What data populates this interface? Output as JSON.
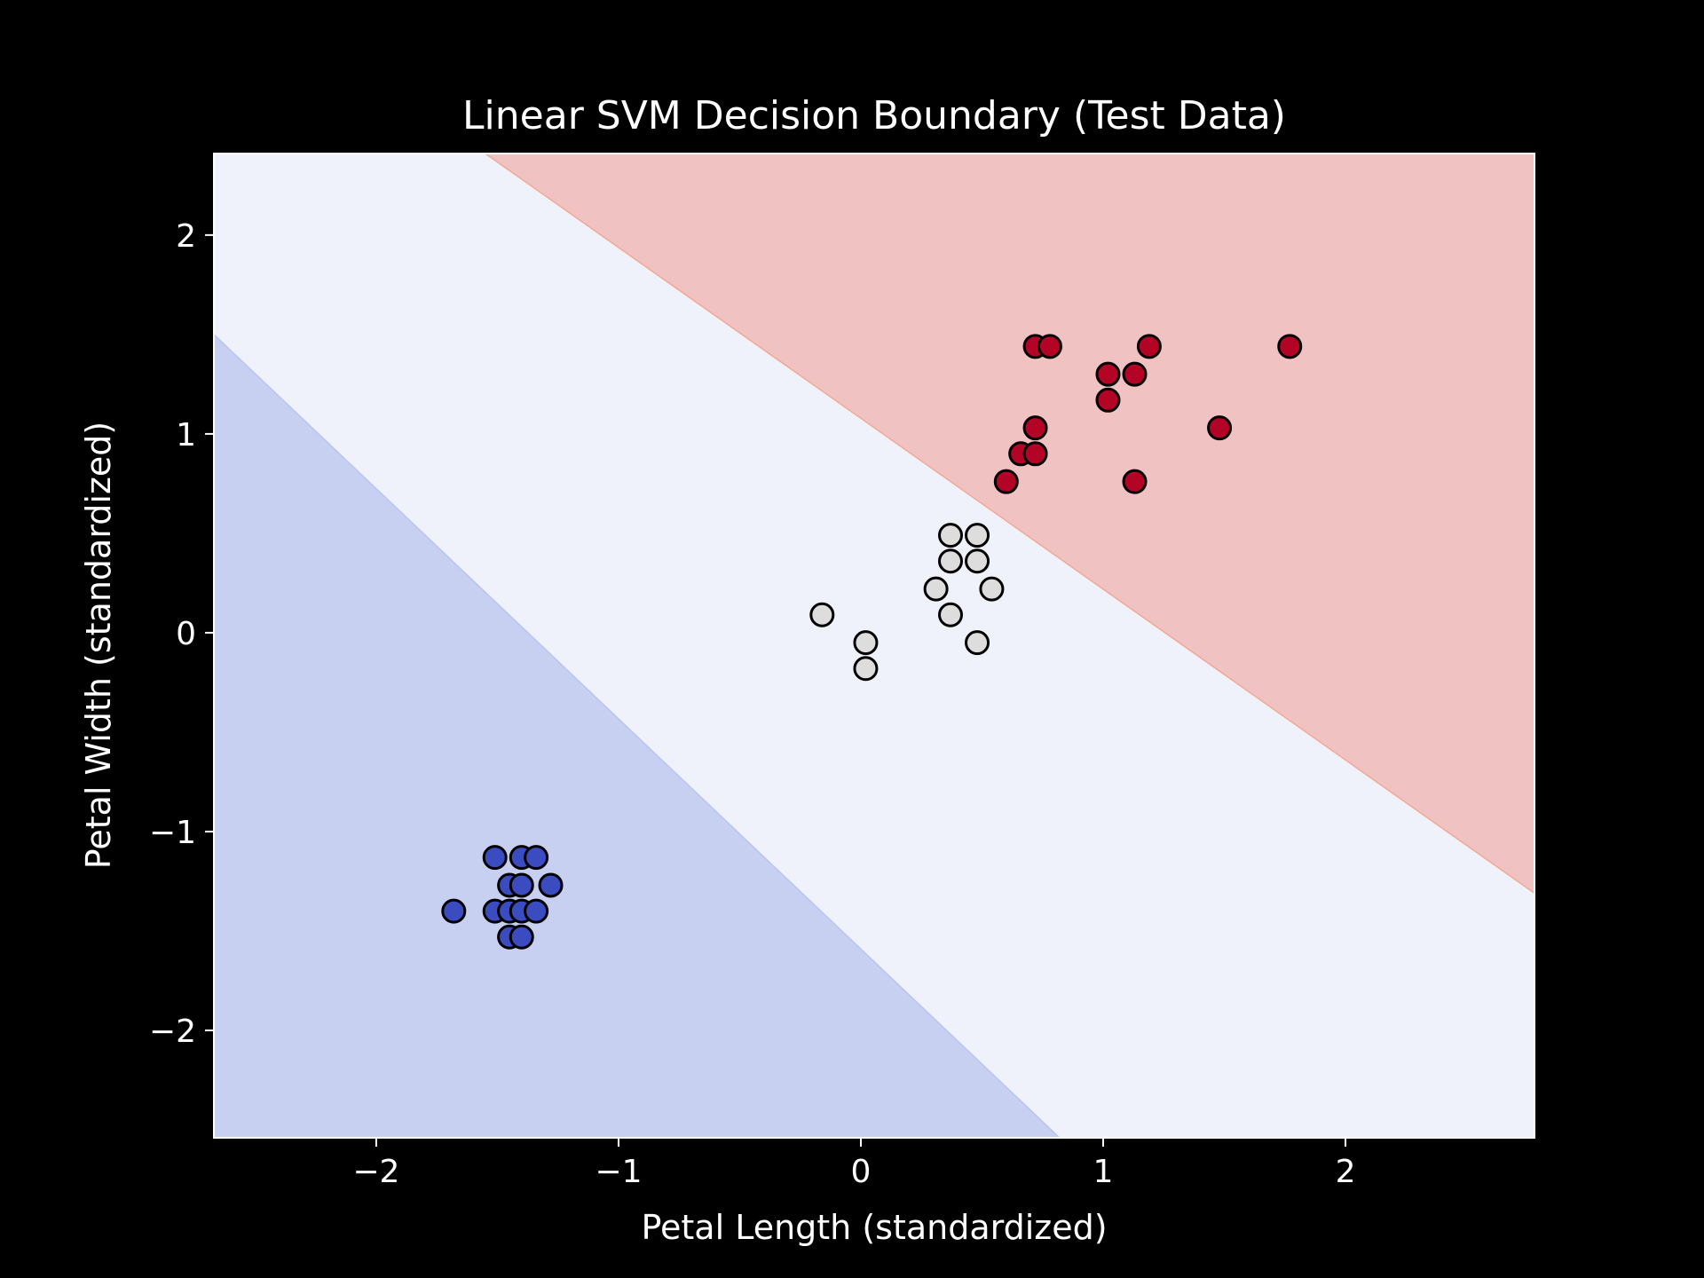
{
  "chart_data": {
    "type": "scatter",
    "title": "Linear SVM Decision Boundary (Test Data)",
    "xlabel": "Petal Length (standardized)",
    "ylabel": "Petal Width (standardized)",
    "xlim": [
      -2.67,
      2.78
    ],
    "ylim": [
      -2.54,
      2.41
    ],
    "xticks": [
      -2,
      -1,
      0,
      1,
      2
    ],
    "yticks": [
      -2,
      -1,
      0,
      1,
      2
    ],
    "xtick_labels": [
      "−2",
      "−1",
      "0",
      "1",
      "2"
    ],
    "ytick_labels": [
      "−2",
      "−1",
      "0",
      "1",
      "2"
    ],
    "grid": false,
    "background": "#000000",
    "decision_regions": [
      {
        "name": "class-0-region",
        "color": "#c8d0f1"
      },
      {
        "name": "class-1-region",
        "color": "#eff2fa"
      },
      {
        "name": "class-2-region",
        "color": "#f0c2c1"
      }
    ],
    "decision_boundaries": [
      {
        "name": "boundary-0-1",
        "points": [
          [
            -2.67,
            1.5
          ],
          [
            0.82,
            -2.54
          ]
        ]
      },
      {
        "name": "boundary-1-2",
        "points": [
          [
            -1.55,
            2.41
          ],
          [
            2.78,
            -1.31
          ]
        ]
      }
    ],
    "series": [
      {
        "name": "class-0",
        "color": "#3b4cc0",
        "points": [
          [
            -1.68,
            -1.4
          ],
          [
            -1.51,
            -1.13
          ],
          [
            -1.51,
            -1.4
          ],
          [
            -1.45,
            -1.27
          ],
          [
            -1.45,
            -1.4
          ],
          [
            -1.45,
            -1.53
          ],
          [
            -1.4,
            -1.13
          ],
          [
            -1.4,
            -1.27
          ],
          [
            -1.4,
            -1.4
          ],
          [
            -1.4,
            -1.53
          ],
          [
            -1.34,
            -1.13
          ],
          [
            -1.34,
            -1.4
          ],
          [
            -1.28,
            -1.27
          ]
        ]
      },
      {
        "name": "class-1",
        "color": "#dddddd",
        "points": [
          [
            -0.16,
            0.09
          ],
          [
            0.02,
            -0.05
          ],
          [
            0.02,
            -0.18
          ],
          [
            0.31,
            0.22
          ],
          [
            0.37,
            0.49
          ],
          [
            0.37,
            0.36
          ],
          [
            0.37,
            0.09
          ],
          [
            0.48,
            0.49
          ],
          [
            0.48,
            0.36
          ],
          [
            0.48,
            -0.05
          ],
          [
            0.54,
            0.22
          ]
        ]
      },
      {
        "name": "class-2",
        "color": "#b40426",
        "points": [
          [
            0.6,
            0.76
          ],
          [
            0.66,
            0.9
          ],
          [
            0.72,
            0.9
          ],
          [
            0.72,
            1.03
          ],
          [
            0.72,
            1.44
          ],
          [
            0.78,
            1.44
          ],
          [
            1.02,
            1.3
          ],
          [
            1.02,
            1.17
          ],
          [
            1.13,
            1.3
          ],
          [
            1.13,
            0.76
          ],
          [
            1.19,
            1.44
          ],
          [
            1.48,
            1.03
          ],
          [
            1.77,
            1.44
          ]
        ]
      }
    ]
  }
}
